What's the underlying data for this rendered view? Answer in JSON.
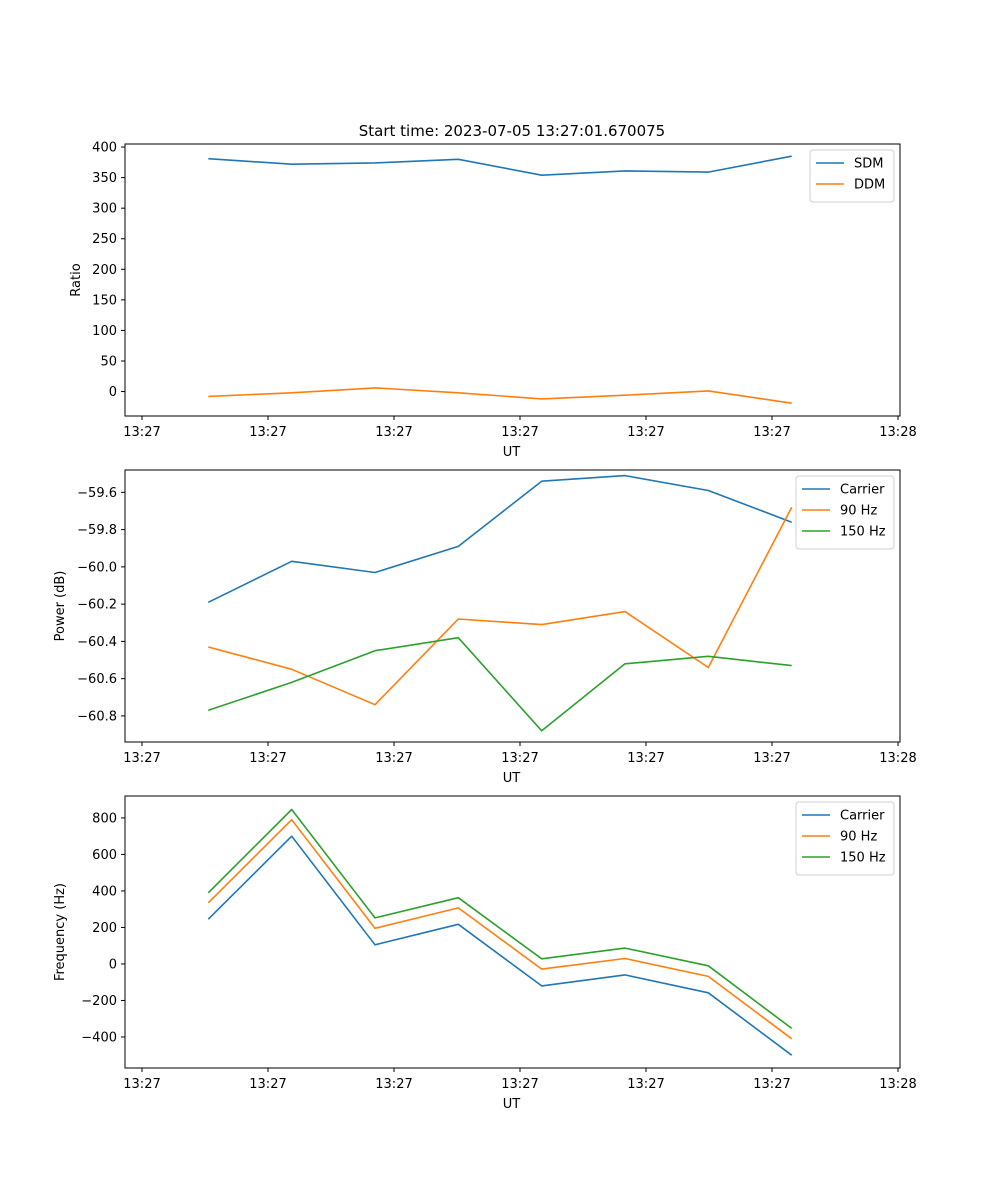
{
  "chart_data": [
    {
      "type": "line",
      "title": "Start time: 2023-07-05 13:27:01.670075",
      "xlabel": "UT",
      "ylabel": "Ratio",
      "xticks": [
        "13:27",
        "13:27",
        "13:27",
        "13:27",
        "13:27",
        "13:27",
        "13:28"
      ],
      "yticks": [
        "0",
        "50",
        "100",
        "150",
        "200",
        "250",
        "300",
        "350",
        "400"
      ],
      "ytick_values": [
        0,
        50,
        100,
        150,
        200,
        250,
        300,
        350,
        400
      ],
      "ylim": [
        -40,
        405
      ],
      "xlim": [
        -1.0,
        8.3
      ],
      "x": [
        0,
        1,
        2,
        3,
        4,
        5,
        6,
        7
      ],
      "legend": "upper right",
      "series": [
        {
          "name": "SDM",
          "color": "#1f77b4",
          "values": [
            381,
            372,
            374,
            380,
            354,
            361,
            359,
            385
          ]
        },
        {
          "name": "DDM",
          "color": "#ff7f0e",
          "values": [
            -8,
            -2,
            6,
            -2,
            -12,
            -6,
            1,
            -19
          ]
        }
      ]
    },
    {
      "type": "line",
      "title": "",
      "xlabel": "UT",
      "ylabel": "Power (dB)",
      "xticks": [
        "13:27",
        "13:27",
        "13:27",
        "13:27",
        "13:27",
        "13:27",
        "13:28"
      ],
      "yticks": [
        "−60.8",
        "−60.6",
        "−60.4",
        "−60.2",
        "−60.0",
        "−59.8",
        "−59.6"
      ],
      "ytick_values": [
        -60.8,
        -60.6,
        -60.4,
        -60.2,
        -60.0,
        -59.8,
        -59.6
      ],
      "ylim": [
        -60.94,
        -59.48
      ],
      "xlim": [
        -1.0,
        8.3
      ],
      "x": [
        0,
        1,
        2,
        3,
        4,
        5,
        6,
        7
      ],
      "legend": "upper right",
      "series": [
        {
          "name": "Carrier",
          "color": "#1f77b4",
          "values": [
            -60.19,
            -59.97,
            -60.03,
            -59.89,
            -59.54,
            -59.51,
            -59.59,
            -59.76
          ]
        },
        {
          "name": "90 Hz",
          "color": "#ff7f0e",
          "values": [
            -60.43,
            -60.55,
            -60.74,
            -60.28,
            -60.31,
            -60.24,
            -60.54,
            -59.68
          ]
        },
        {
          "name": "150 Hz",
          "color": "#2ca02c",
          "values": [
            -60.77,
            -60.62,
            -60.45,
            -60.38,
            -60.88,
            -60.52,
            -60.48,
            -60.53
          ]
        }
      ]
    },
    {
      "type": "line",
      "title": "",
      "xlabel": "UT",
      "ylabel": "Frequency (Hz)",
      "xticks": [
        "13:27",
        "13:27",
        "13:27",
        "13:27",
        "13:27",
        "13:27",
        "13:28"
      ],
      "yticks": [
        "−400",
        "−200",
        "0",
        "200",
        "400",
        "600",
        "800"
      ],
      "ytick_values": [
        -400,
        -200,
        0,
        200,
        400,
        600,
        800
      ],
      "ylim": [
        -570,
        920
      ],
      "xlim": [
        -1.0,
        8.3
      ],
      "x": [
        0,
        1,
        2,
        3,
        4,
        5,
        6,
        7
      ],
      "legend": "upper right",
      "series": [
        {
          "name": "Carrier",
          "color": "#1f77b4",
          "values": [
            245,
            700,
            105,
            217,
            -120,
            -60,
            -158,
            -500
          ]
        },
        {
          "name": "90 Hz",
          "color": "#ff7f0e",
          "values": [
            335,
            790,
            195,
            307,
            -28,
            30,
            -68,
            -410
          ]
        },
        {
          "name": "150 Hz",
          "color": "#2ca02c",
          "values": [
            390,
            846,
            252,
            363,
            28,
            87,
            -10,
            -353
          ]
        }
      ]
    }
  ]
}
